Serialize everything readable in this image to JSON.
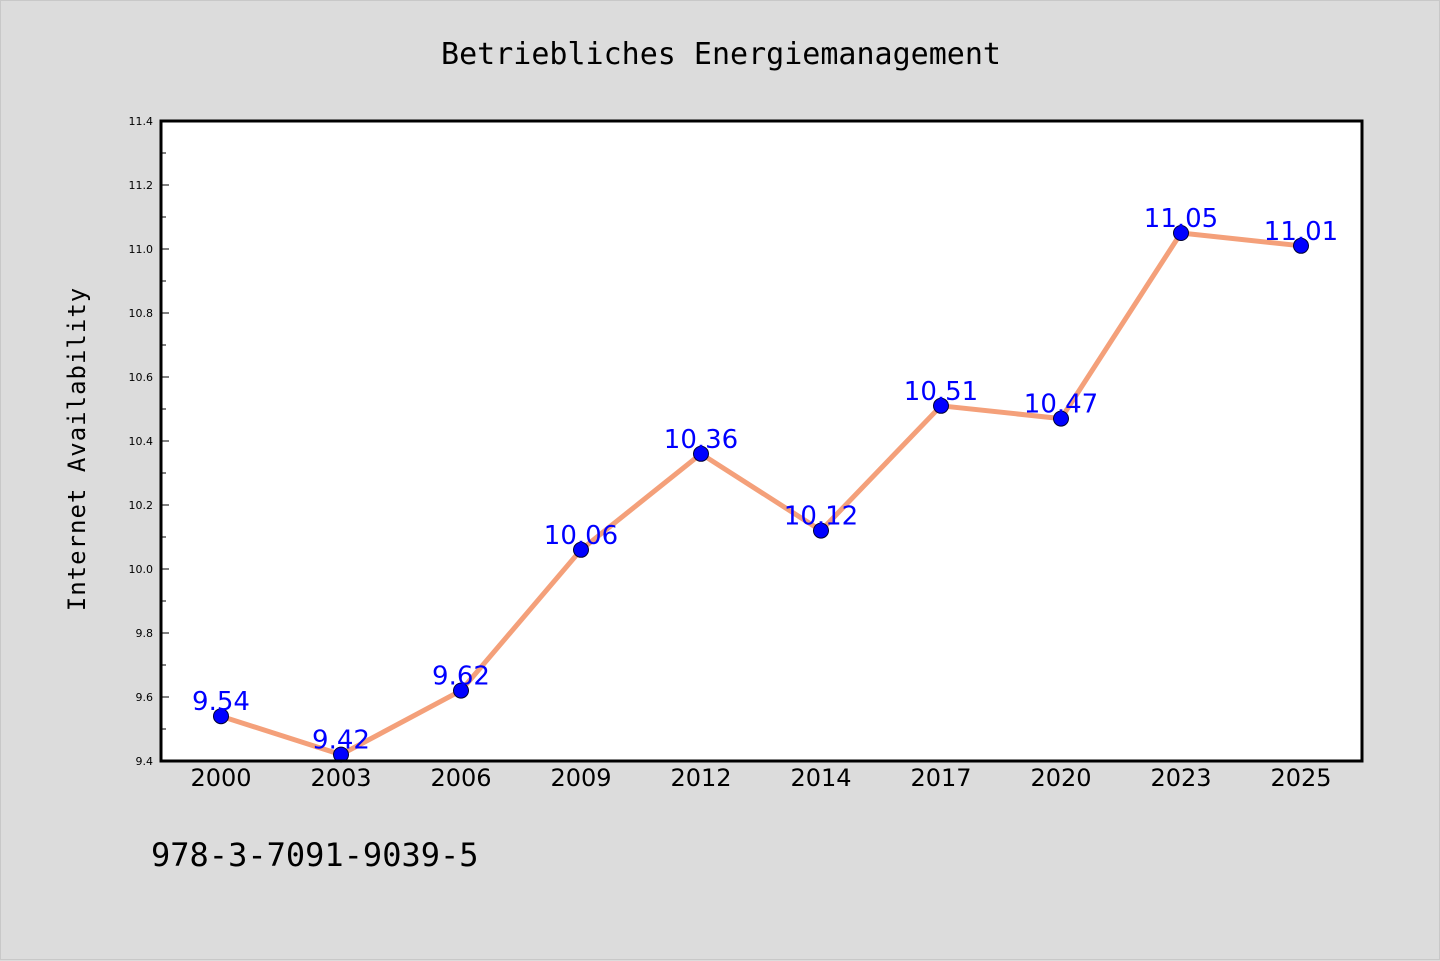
{
  "chart_data": {
    "type": "line",
    "title": "Betriebliches Energiemanagement",
    "xlabel": "",
    "ylabel": "Internet Availability",
    "categories": [
      "2000",
      "2003",
      "2006",
      "2009",
      "2012",
      "2014",
      "2017",
      "2020",
      "2023",
      "2025"
    ],
    "values": [
      9.54,
      9.42,
      9.62,
      10.06,
      10.36,
      10.12,
      10.51,
      10.47,
      11.05,
      11.01
    ],
    "data_labels": [
      "9.54",
      "9.42",
      "9.62",
      "10.06",
      "10.36",
      "10.12",
      "10.51",
      "10.47",
      "11.05",
      "11.01"
    ],
    "ylim": [
      9.4,
      11.4
    ],
    "yticks": [
      "9.4",
      "9.6",
      "9.8",
      "10.0",
      "10.2",
      "10.4",
      "10.6",
      "10.8",
      "11.0",
      "11.2",
      "11.4"
    ],
    "grid": false,
    "legend": "none",
    "colors": {
      "line": "#f4a07a",
      "marker": "#0000ff",
      "label": "#0000ff",
      "background": "#dcdcdc",
      "plot_background": "#ffffff"
    }
  },
  "footer": {
    "code": "978-3-7091-9039-5"
  }
}
